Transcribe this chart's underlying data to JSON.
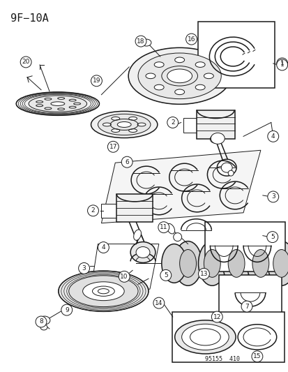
{
  "title": "9F−10A",
  "footer": "95155  410",
  "bg_color": "#ffffff",
  "line_color": "#1a1a1a",
  "fig_width": 4.14,
  "fig_height": 5.33,
  "dpi": 100
}
